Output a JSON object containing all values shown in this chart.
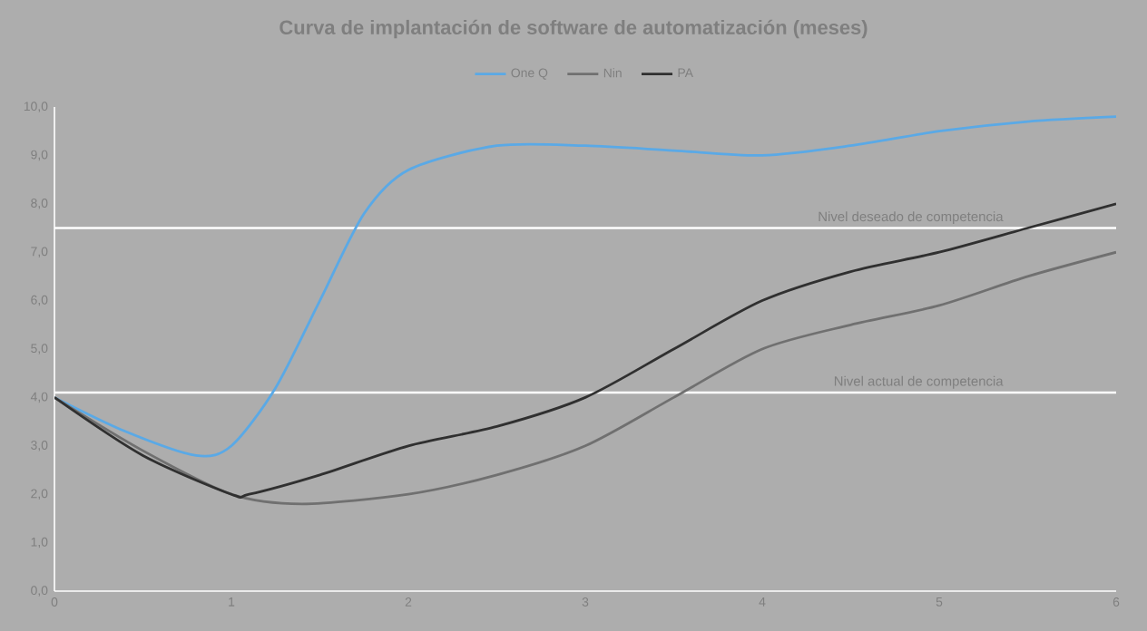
{
  "chart_data": {
    "type": "line",
    "title": "Curva de implantación de software de automatización (meses)",
    "series": [
      {
        "name": "One Q",
        "color": "#5aa9e6",
        "x": [
          0,
          0.4,
          0.8,
          1.0,
          1.25,
          1.5,
          1.75,
          2.0,
          2.5,
          3,
          3.5,
          4,
          4.5,
          5,
          5.5,
          6
        ],
        "values": [
          4.0,
          3.3,
          2.8,
          3.0,
          4.2,
          6.0,
          7.8,
          8.7,
          9.2,
          9.2,
          9.1,
          9.0,
          9.2,
          9.5,
          9.7,
          9.8
        ]
      },
      {
        "name": "Nin",
        "color": "#707070",
        "x": [
          0,
          0.5,
          1,
          1.4,
          2,
          2.5,
          3,
          3.5,
          4,
          4.5,
          5,
          5.5,
          6
        ],
        "values": [
          4.0,
          2.9,
          2.0,
          1.8,
          2.0,
          2.4,
          3.0,
          4.0,
          5.0,
          5.5,
          5.9,
          6.5,
          7.0
        ]
      },
      {
        "name": "PA",
        "color": "#303030",
        "x": [
          0,
          0.5,
          1,
          1.1,
          1.5,
          2,
          2.5,
          3,
          3.5,
          4,
          4.5,
          5,
          5.5,
          6
        ],
        "values": [
          4.0,
          2.8,
          2.0,
          2.0,
          2.4,
          3.0,
          3.4,
          4.0,
          5.0,
          6.0,
          6.6,
          7.0,
          7.5,
          8.0
        ]
      }
    ],
    "xlim": [
      0,
      6
    ],
    "xticks": [
      0,
      1,
      2,
      3,
      4,
      5,
      6
    ],
    "ylim": [
      0,
      10
    ],
    "yticks": [
      {
        "value": 0,
        "label": "0,0"
      },
      {
        "value": 1,
        "label": "1,0"
      },
      {
        "value": 2,
        "label": "2,0"
      },
      {
        "value": 3,
        "label": "3,0"
      },
      {
        "value": 4,
        "label": "4,0"
      },
      {
        "value": 5,
        "label": "5,0"
      },
      {
        "value": 6,
        "label": "6,0"
      },
      {
        "value": 7,
        "label": "7,0"
      },
      {
        "value": 8,
        "label": "8,0"
      },
      {
        "value": 9,
        "label": "9,0"
      },
      {
        "value": 10,
        "label": "10,0"
      }
    ],
    "ref_lines": [
      {
        "axis": "y",
        "value": 7.5,
        "label": "Nivel deseado de competencia",
        "color": "#ffffff"
      },
      {
        "axis": "y",
        "value": 4.1,
        "label": "Nivel actual de competencia",
        "color": "#ffffff"
      }
    ],
    "grid": false,
    "legend": "top",
    "marker": "none",
    "line_style": "solid"
  }
}
